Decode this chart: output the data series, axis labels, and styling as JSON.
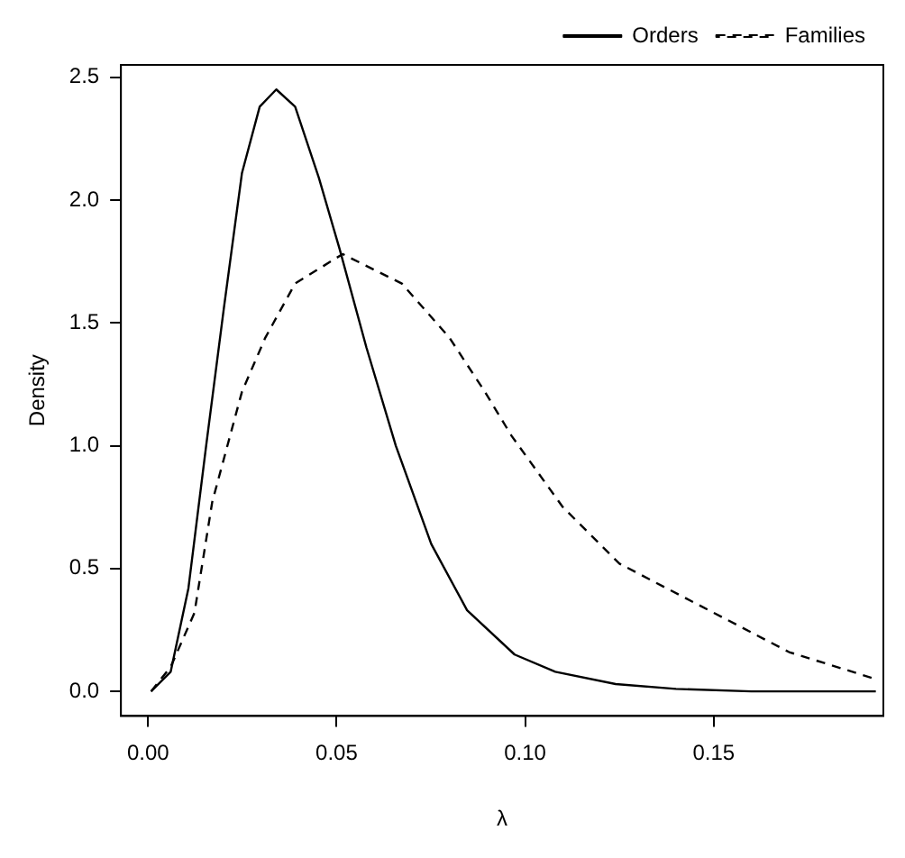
{
  "chart_data": {
    "type": "line",
    "xlabel": "λ",
    "ylabel": "Density",
    "xlim": [
      -0.0072,
      0.195
    ],
    "xticks": [
      {
        "value": 0,
        "label": "0.00"
      },
      {
        "value": 0.05,
        "label": "0.05"
      },
      {
        "value": 0.1,
        "label": "0.10"
      },
      {
        "value": 0.15,
        "label": "0.15"
      }
    ],
    "ylim": [
      -0.1,
      2.55
    ],
    "yticks": [
      {
        "value": 0,
        "label": "0.0"
      },
      0.5,
      {
        "value": 1,
        "label": "1.0"
      },
      1.5,
      {
        "value": 2,
        "label": "2.0"
      },
      2.5
    ],
    "grid": false,
    "legend": "top right",
    "marker": "none",
    "series": [
      {
        "name": "Orders",
        "color": "#000000",
        "line_style": "solid",
        "x": [
          0.0008,
          0.006,
          0.0107,
          0.0154,
          0.0201,
          0.0249,
          0.0296,
          0.034,
          0.039,
          0.0453,
          0.0508,
          0.0579,
          0.0657,
          0.0751,
          0.0846,
          0.0972,
          0.108,
          0.124,
          0.14,
          0.16,
          0.193
        ],
        "values": [
          0,
          0.08,
          0.42,
          1.0,
          1.56,
          2.11,
          2.38,
          2.45,
          2.38,
          2.09,
          1.8,
          1.4,
          1.0,
          0.6,
          0.33,
          0.15,
          0.08,
          0.03,
          0.01,
          0,
          0
        ]
      },
      {
        "name": "Families",
        "color": "#000000",
        "line_style": "dashed",
        "x": [
          0.0008,
          0.006,
          0.0123,
          0.017,
          0.0249,
          0.0311,
          0.039,
          0.0516,
          0.0673,
          0.0799,
          0.0893,
          0.0964,
          0.11,
          0.125,
          0.15,
          0.17,
          0.193
        ],
        "values": [
          0,
          0.1,
          0.32,
          0.77,
          1.22,
          1.44,
          1.66,
          1.78,
          1.66,
          1.44,
          1.22,
          1.04,
          0.75,
          0.52,
          0.32,
          0.16,
          0.05
        ]
      }
    ]
  }
}
